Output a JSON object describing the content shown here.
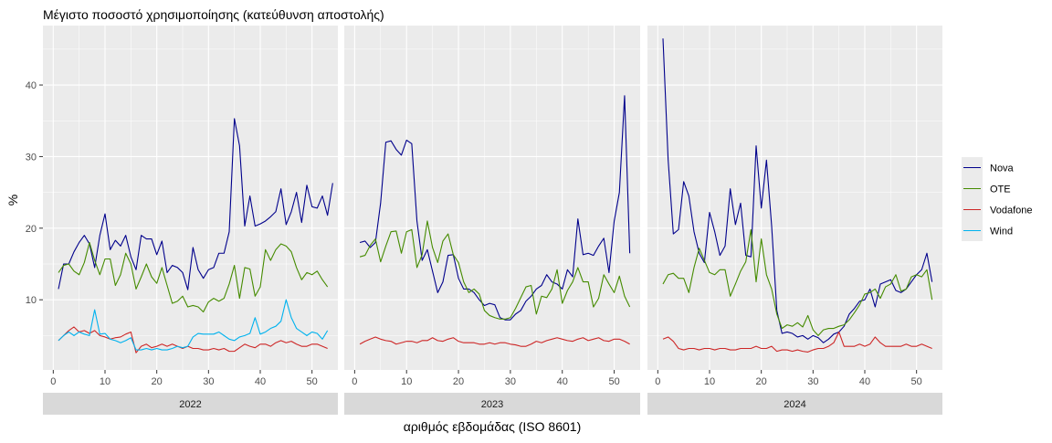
{
  "chart_data": {
    "type": "line",
    "title": "Μέγιστο ποσοστό χρησιμοποίησης (κατεύθυνση αποστολής)",
    "xlabel": "αριθμός εβδομάδας (ISO 8601)",
    "ylabel": "%",
    "x_ticks": [
      0,
      10,
      20,
      30,
      40,
      50
    ],
    "y_ticks": [
      10,
      20,
      30,
      40
    ],
    "xlim": [
      -2,
      55
    ],
    "ylim": [
      0.2,
      48.3
    ],
    "grid": true,
    "legend_position": "right",
    "colors": {
      "Nova": "#00008B",
      "OTE": "#458B00",
      "Vodafone": "#CD2626",
      "Wind": "#00B2EE"
    },
    "panels": [
      {
        "label": "2022",
        "series": [
          {
            "name": "Nova",
            "values": [
              11.5,
              15,
              15,
              16.7,
              18,
              19,
              17.8,
              14.5,
              19,
              22,
              17,
              18.3,
              17.5,
              19,
              16,
              14.2,
              19,
              18.5,
              18.5,
              16.3,
              18.2,
              13.8,
              14.8,
              14.5,
              13.8,
              11.4,
              17.3,
              14.2,
              13,
              14.2,
              14.5,
              16.5,
              16.5,
              19.5,
              35.3,
              31.5,
              20.3,
              24.5,
              20.3,
              20.6,
              21,
              21.6,
              22.3,
              25.5,
              20.5,
              22.3,
              25,
              20.8,
              26,
              23,
              22.8,
              24.5,
              21.8,
              26.3
            ]
          },
          {
            "name": "OTE",
            "values": [
              13.8,
              14.8,
              15,
              14,
              13.5,
              15.2,
              18,
              15.5,
              13.5,
              15.7,
              15.7,
              12,
              13.5,
              16.5,
              15,
              11.5,
              13.2,
              15,
              13.2,
              12.3,
              14.5,
              12,
              9.5,
              9.8,
              10.5,
              9,
              9.2,
              9,
              8.3,
              9.7,
              10.2,
              9.8,
              10.2,
              12.2,
              14.8,
              10.2,
              14.5,
              14.3,
              10.5,
              11.8,
              17,
              15.5,
              17,
              17.8,
              17.5,
              16.7,
              14.5,
              12.8,
              13.8,
              13.5,
              14,
              12.8,
              11.8
            ]
          },
          {
            "name": "Vodafone",
            "values": [
              4.3,
              5,
              5.7,
              6.2,
              5.5,
              5.7,
              5.3,
              5.7,
              5,
              4.8,
              4.5,
              4.7,
              4.8,
              5.2,
              5.5,
              2.6,
              3.5,
              3.8,
              3.3,
              3.5,
              3.8,
              3.5,
              3.8,
              3.5,
              3.2,
              3.5,
              3.2,
              3.2,
              3,
              3,
              3.2,
              3,
              3.2,
              2.8,
              2.8,
              3.3,
              3.8,
              3.5,
              3.3,
              3.8,
              3.8,
              3.5,
              4,
              4.3,
              4,
              4.2,
              3.8,
              3.5,
              3.5,
              3.8,
              3.8,
              3.5,
              3.2
            ]
          },
          {
            "name": "Wind",
            "values": [
              4.3,
              5,
              5.5,
              5,
              5.5,
              5.2,
              5,
              8.6,
              5.2,
              5.3,
              4.5,
              4.3,
              4,
              4.3,
              4.7,
              3,
              3,
              3.2,
              3,
              3.2,
              3,
              3,
              3.2,
              3.5,
              3.3,
              3.5,
              4.8,
              5.3,
              5.2,
              5.2,
              5.2,
              5.5,
              5,
              4.5,
              4.3,
              4.8,
              5,
              5.3,
              7.5,
              5.2,
              5.5,
              6,
              6.3,
              7,
              10,
              7.5,
              6,
              5.5,
              5,
              5.5,
              5.3,
              4.5,
              5.7
            ]
          }
        ]
      },
      {
        "label": "2023",
        "series": [
          {
            "name": "Nova",
            "values": [
              18,
              18.2,
              17.3,
              18,
              23.5,
              32,
              32.2,
              31,
              30.2,
              32.3,
              31.8,
              21,
              15.5,
              17,
              14,
              11,
              12.5,
              16.2,
              16.3,
              13,
              11.5,
              11.5,
              11,
              10,
              9.2,
              9.5,
              9.3,
              7.5,
              7.2,
              7.2,
              8,
              8.5,
              9.8,
              10.5,
              11.5,
              12,
              13.5,
              12.5,
              12.2,
              11.5,
              14.2,
              13.2,
              21.3,
              16.3,
              16.5,
              16.2,
              17.5,
              18.6,
              13.8,
              21,
              25,
              38.5,
              16.5
            ]
          },
          {
            "name": "OTE",
            "values": [
              16,
              16.2,
              17.6,
              18.5,
              15.3,
              17.5,
              19.5,
              19.6,
              16.5,
              19.5,
              19.8,
              14.5,
              16.3,
              21,
              17.3,
              15.2,
              18.2,
              19.2,
              16.3,
              15.2,
              12.5,
              11,
              11.5,
              10.8,
              8.5,
              7.8,
              7.5,
              7.3,
              7.3,
              7.5,
              8.8,
              10.3,
              11.8,
              12,
              8,
              10.5,
              10.3,
              11.5,
              14.2,
              9.5,
              11.3,
              12.5,
              14.5,
              12.5,
              12.5,
              9,
              10.2,
              13.5,
              12.2,
              11,
              13.3,
              10.5,
              9
            ]
          },
          {
            "name": "Vodafone",
            "values": [
              3.8,
              4.2,
              4.5,
              4.8,
              4.5,
              4.3,
              4.2,
              3.8,
              4,
              4.2,
              4.2,
              4,
              4.3,
              4.3,
              4.7,
              4.3,
              4.2,
              4.5,
              4.7,
              4.2,
              4,
              4,
              4,
              3.8,
              3.8,
              4,
              3.8,
              4,
              4,
              3.8,
              3.7,
              3.5,
              3.5,
              3.8,
              4.2,
              4,
              4.3,
              4.5,
              4.7,
              4.5,
              4.3,
              4.2,
              4.5,
              4.7,
              4.3,
              4.5,
              4.7,
              4.3,
              4.2,
              4.5,
              4.5,
              4.2,
              3.8
            ]
          }
        ]
      },
      {
        "label": "2024",
        "series": [
          {
            "name": "Nova",
            "values": [
              46.5,
              29.5,
              19.2,
              19.8,
              26.5,
              24.5,
              19.5,
              16.5,
              15.2,
              22.2,
              19.5,
              16.2,
              17.5,
              25.5,
              20.5,
              23.5,
              16.2,
              16,
              31.5,
              22.8,
              29.5,
              20.3,
              8.5,
              5.3,
              5.5,
              5.3,
              4.8,
              5,
              4.5,
              5,
              4.7,
              4,
              4.5,
              5.2,
              5.5,
              6.3,
              8,
              8.8,
              9.8,
              10,
              11.5,
              9,
              12.2,
              12.5,
              12.8,
              11.3,
              11,
              11.5,
              12.5,
              13.5,
              14.2,
              16.5,
              12.5
            ]
          },
          {
            "name": "OTE",
            "values": [
              12.2,
              13.5,
              13.7,
              13,
              13,
              11,
              14.5,
              17.2,
              15.5,
              13.8,
              13.5,
              14.2,
              14.2,
              10.5,
              12.2,
              14,
              15.3,
              19.8,
              12.5,
              18.5,
              13.5,
              11.5,
              8,
              6,
              6.5,
              6.3,
              6.8,
              6.2,
              7.8,
              5.8,
              5,
              5.8,
              6,
              6,
              6.3,
              6.5,
              7.2,
              8.2,
              9.3,
              10.8,
              11,
              11.5,
              10.2,
              11.8,
              12.2,
              13.5,
              11.2,
              11.5,
              13.2,
              13.5,
              13.2,
              14.2,
              10
            ]
          },
          {
            "name": "Vodafone",
            "values": [
              4.5,
              4.8,
              4.2,
              3.2,
              3,
              3.2,
              3.2,
              3,
              3.2,
              3.2,
              3,
              3.2,
              3.2,
              3,
              3,
              3.2,
              3.2,
              3.2,
              3.5,
              3.2,
              3.2,
              3.5,
              2.8,
              3,
              3,
              2.8,
              3,
              2.8,
              2.7,
              3,
              3.2,
              3.2,
              3.5,
              4,
              5.5,
              3.5,
              3.5,
              3.5,
              3.8,
              3.5,
              3.8,
              4.8,
              4,
              3.5,
              3.5,
              3.5,
              3.5,
              3.8,
              3.5,
              3.5,
              3.8,
              3.5,
              3.2
            ]
          }
        ]
      }
    ]
  }
}
